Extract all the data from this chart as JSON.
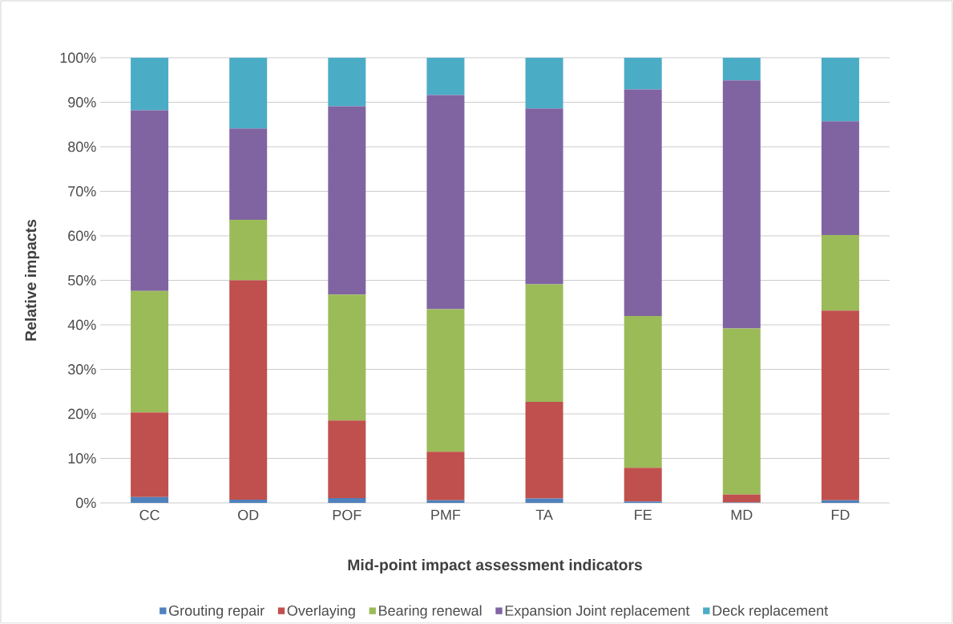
{
  "chart_data": {
    "type": "bar",
    "stacked": true,
    "xlabel": "Mid-point impact assessment indicators",
    "ylabel": "Relative impacts",
    "categories": [
      "CC",
      "OD",
      "POF",
      "PMF",
      "TA",
      "FE",
      "MD",
      "FD"
    ],
    "series": [
      {
        "name": "Grouting repair",
        "color": "#4f81bd",
        "values": [
          1.3,
          0.7,
          1.1,
          0.6,
          1.0,
          0.3,
          0.1,
          0.6
        ]
      },
      {
        "name": "Overlaying",
        "color": "#c0504d",
        "values": [
          19.0,
          49.3,
          17.4,
          10.9,
          21.7,
          7.6,
          1.8,
          42.6
        ]
      },
      {
        "name": "Bearing renewal",
        "color": "#9bbb59",
        "values": [
          27.3,
          13.6,
          28.3,
          32.0,
          26.4,
          34.1,
          37.3,
          17.0
        ]
      },
      {
        "name": "Expansion Joint replacement",
        "color": "#8064a2",
        "values": [
          40.6,
          20.5,
          42.3,
          48.1,
          39.5,
          50.9,
          55.7,
          25.5
        ]
      },
      {
        "name": "Deck replacement",
        "color": "#4bacc6",
        "values": [
          11.8,
          15.9,
          10.9,
          8.4,
          11.4,
          7.1,
          5.1,
          14.3
        ]
      }
    ],
    "ylim": [
      0,
      100
    ],
    "yticks": [
      {
        "value": 0,
        "label": "0%"
      },
      {
        "value": 10,
        "label": "10%"
      },
      {
        "value": 20,
        "label": "20%"
      },
      {
        "value": 30,
        "label": "30%"
      },
      {
        "value": 40,
        "label": "40%"
      },
      {
        "value": 50,
        "label": "50%"
      },
      {
        "value": 60,
        "label": "60%"
      },
      {
        "value": 70,
        "label": "70%"
      },
      {
        "value": 80,
        "label": "80%"
      },
      {
        "value": 90,
        "label": "90%"
      },
      {
        "value": 100,
        "label": "100%"
      }
    ],
    "grid": "y",
    "legend": "bottom"
  }
}
